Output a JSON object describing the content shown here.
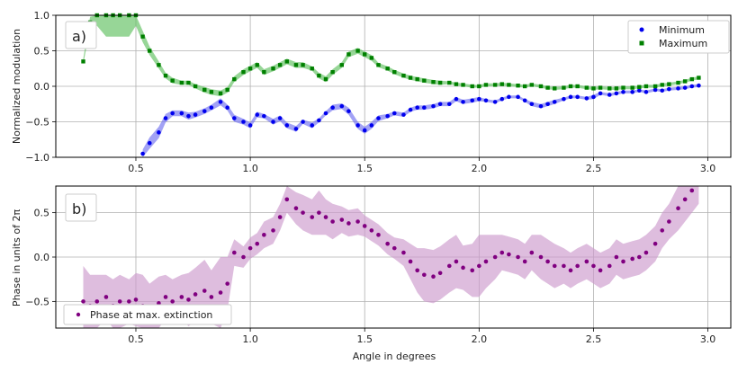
{
  "chart_data": [
    {
      "type": "scatter",
      "panel_label": "a)",
      "xlabel": "",
      "ylabel": "Normalized modulation",
      "xlim": [
        0.15,
        3.1
      ],
      "ylim": [
        -1.0,
        1.0
      ],
      "xticks": [
        "0.5",
        "1.0",
        "1.5",
        "2.0",
        "2.5",
        "3.0"
      ],
      "yticks": [
        "−1.0",
        "−0.5",
        "0.0",
        "0.5",
        "1.0"
      ],
      "grid": true,
      "legend_position": "top-right",
      "series": [
        {
          "name": "Minimum",
          "color": "#0000ee",
          "band_color": "#7070f0",
          "marker": "circle",
          "x": [
            0.53,
            0.56,
            0.6,
            0.63,
            0.66,
            0.7,
            0.73,
            0.76,
            0.8,
            0.83,
            0.87,
            0.9,
            0.93,
            0.97,
            1.0,
            1.03,
            1.06,
            1.1,
            1.13,
            1.16,
            1.2,
            1.23,
            1.27,
            1.3,
            1.33,
            1.36,
            1.4,
            1.43,
            1.47,
            1.5,
            1.53,
            1.56,
            1.6,
            1.63,
            1.67,
            1.7,
            1.73,
            1.76,
            1.8,
            1.83,
            1.87,
            1.9,
            1.93,
            1.97,
            2.0,
            2.03,
            2.07,
            2.1,
            2.13,
            2.17,
            2.2,
            2.23,
            2.27,
            2.3,
            2.33,
            2.37,
            2.4,
            2.43,
            2.47,
            2.5,
            2.53,
            2.57,
            2.6,
            2.63,
            2.67,
            2.7,
            2.73,
            2.77,
            2.8,
            2.83,
            2.87,
            2.9,
            2.93,
            2.96
          ],
          "values": [
            -0.95,
            -0.8,
            -0.65,
            -0.45,
            -0.38,
            -0.38,
            -0.42,
            -0.4,
            -0.35,
            -0.3,
            -0.22,
            -0.3,
            -0.45,
            -0.5,
            -0.55,
            -0.4,
            -0.42,
            -0.5,
            -0.45,
            -0.55,
            -0.6,
            -0.5,
            -0.55,
            -0.48,
            -0.38,
            -0.3,
            -0.28,
            -0.35,
            -0.55,
            -0.62,
            -0.55,
            -0.45,
            -0.42,
            -0.38,
            -0.4,
            -0.33,
            -0.3,
            -0.3,
            -0.28,
            -0.25,
            -0.25,
            -0.18,
            -0.22,
            -0.2,
            -0.18,
            -0.2,
            -0.22,
            -0.18,
            -0.15,
            -0.15,
            -0.2,
            -0.25,
            -0.28,
            -0.25,
            -0.22,
            -0.18,
            -0.15,
            -0.15,
            -0.17,
            -0.15,
            -0.1,
            -0.12,
            -0.1,
            -0.08,
            -0.08,
            -0.06,
            -0.08,
            -0.05,
            -0.06,
            -0.04,
            -0.03,
            -0.02,
            0.0,
            0.01
          ],
          "err": [
            0.06,
            0.08,
            0.08,
            0.06,
            0.04,
            0.04,
            0.05,
            0.04,
            0.04,
            0.04,
            0.05,
            0.04,
            0.05,
            0.04,
            0.04,
            0.04,
            0.03,
            0.04,
            0.04,
            0.04,
            0.04,
            0.03,
            0.04,
            0.03,
            0.03,
            0.04,
            0.04,
            0.05,
            0.05,
            0.05,
            0.05,
            0.04,
            0.03,
            0.03,
            0.03,
            0.03,
            0.03,
            0.03,
            0.03,
            0.03,
            0.03,
            0.03,
            0.03,
            0.03,
            0.03,
            0.02,
            0.02,
            0.02,
            0.02,
            0.02,
            0.02,
            0.03,
            0.03,
            0.03,
            0.03,
            0.02,
            0.02,
            0.02,
            0.02,
            0.03,
            0.02,
            0.02,
            0.02,
            0.02,
            0.02,
            0.02,
            0.02,
            0.02,
            0.02,
            0.02,
            0.02,
            0.02,
            0.02,
            0.02
          ]
        },
        {
          "name": "Maximum",
          "color": "#008000",
          "band_color": "#60c060",
          "marker": "square",
          "x": [
            0.27,
            0.3,
            0.33,
            0.37,
            0.4,
            0.43,
            0.47,
            0.5,
            0.53,
            0.56,
            0.6,
            0.63,
            0.66,
            0.7,
            0.73,
            0.76,
            0.8,
            0.83,
            0.87,
            0.9,
            0.93,
            0.97,
            1.0,
            1.03,
            1.06,
            1.1,
            1.13,
            1.16,
            1.2,
            1.23,
            1.27,
            1.3,
            1.33,
            1.36,
            1.4,
            1.43,
            1.47,
            1.5,
            1.53,
            1.56,
            1.6,
            1.63,
            1.67,
            1.7,
            1.73,
            1.76,
            1.8,
            1.83,
            1.87,
            1.9,
            1.93,
            1.97,
            2.0,
            2.03,
            2.07,
            2.1,
            2.13,
            2.17,
            2.2,
            2.23,
            2.27,
            2.3,
            2.33,
            2.37,
            2.4,
            2.43,
            2.47,
            2.5,
            2.53,
            2.57,
            2.6,
            2.63,
            2.67,
            2.7,
            2.73,
            2.77,
            2.8,
            2.83,
            2.87,
            2.9,
            2.93,
            2.96
          ],
          "values": [
            0.35,
            0.9,
            1.0,
            1.0,
            1.0,
            1.0,
            1.0,
            1.0,
            0.7,
            0.5,
            0.3,
            0.15,
            0.08,
            0.05,
            0.05,
            0.0,
            -0.05,
            -0.08,
            -0.1,
            -0.05,
            0.1,
            0.2,
            0.25,
            0.3,
            0.2,
            0.25,
            0.3,
            0.35,
            0.3,
            0.3,
            0.25,
            0.15,
            0.1,
            0.2,
            0.3,
            0.45,
            0.5,
            0.45,
            0.4,
            0.3,
            0.25,
            0.2,
            0.15,
            0.12,
            0.1,
            0.08,
            0.06,
            0.05,
            0.05,
            0.03,
            0.02,
            0.0,
            0.0,
            0.02,
            0.02,
            0.03,
            0.02,
            0.01,
            0.0,
            0.02,
            0.0,
            -0.02,
            -0.03,
            -0.02,
            0.0,
            0.0,
            -0.02,
            -0.03,
            -0.02,
            -0.03,
            -0.03,
            -0.02,
            -0.02,
            -0.01,
            0.0,
            0.0,
            0.02,
            0.03,
            0.05,
            0.07,
            0.1,
            0.12
          ],
          "err": [
            0.04,
            0.08,
            0.15,
            0.3,
            0.3,
            0.3,
            0.3,
            0.15,
            0.08,
            0.06,
            0.05,
            0.04,
            0.04,
            0.03,
            0.03,
            0.03,
            0.04,
            0.04,
            0.04,
            0.04,
            0.04,
            0.04,
            0.04,
            0.04,
            0.04,
            0.04,
            0.04,
            0.04,
            0.04,
            0.04,
            0.03,
            0.04,
            0.04,
            0.04,
            0.04,
            0.04,
            0.04,
            0.04,
            0.04,
            0.03,
            0.03,
            0.03,
            0.03,
            0.03,
            0.03,
            0.03,
            0.03,
            0.03,
            0.02,
            0.02,
            0.02,
            0.02,
            0.02,
            0.02,
            0.02,
            0.02,
            0.02,
            0.02,
            0.02,
            0.02,
            0.02,
            0.02,
            0.02,
            0.02,
            0.02,
            0.02,
            0.02,
            0.02,
            0.02,
            0.02,
            0.02,
            0.02,
            0.02,
            0.02,
            0.02,
            0.02,
            0.02,
            0.02,
            0.02,
            0.02,
            0.02,
            0.02
          ]
        }
      ]
    },
    {
      "type": "scatter",
      "panel_label": "b)",
      "xlabel": "Angle in degrees",
      "ylabel": "Phase in units of  2π",
      "xlim": [
        0.15,
        3.1
      ],
      "ylim": [
        -0.8,
        0.8
      ],
      "xticks": [
        "0.5",
        "1.0",
        "1.5",
        "2.0",
        "2.5",
        "3.0"
      ],
      "yticks": [
        "−0.5",
        "0.0",
        "0.5"
      ],
      "grid": true,
      "legend_position": "bottom-left",
      "series": [
        {
          "name": "Phase at max. extinction",
          "color": "#800080",
          "band_color": "#cc99cc",
          "marker": "circle",
          "x": [
            0.27,
            0.3,
            0.33,
            0.37,
            0.4,
            0.43,
            0.47,
            0.5,
            0.53,
            0.56,
            0.6,
            0.63,
            0.66,
            0.7,
            0.73,
            0.76,
            0.8,
            0.83,
            0.87,
            0.9,
            0.93,
            0.97,
            1.0,
            1.03,
            1.06,
            1.1,
            1.13,
            1.16,
            1.2,
            1.23,
            1.27,
            1.3,
            1.33,
            1.36,
            1.4,
            1.43,
            1.47,
            1.5,
            1.53,
            1.56,
            1.6,
            1.63,
            1.67,
            1.7,
            1.73,
            1.76,
            1.8,
            1.83,
            1.87,
            1.9,
            1.93,
            1.97,
            2.0,
            2.03,
            2.07,
            2.1,
            2.13,
            2.17,
            2.2,
            2.23,
            2.27,
            2.3,
            2.33,
            2.37,
            2.4,
            2.43,
            2.47,
            2.5,
            2.53,
            2.57,
            2.6,
            2.63,
            2.67,
            2.7,
            2.73,
            2.77,
            2.8,
            2.83,
            2.87,
            2.9,
            2.93,
            2.96
          ],
          "values": [
            -0.5,
            -0.55,
            -0.5,
            -0.45,
            -0.55,
            -0.5,
            -0.5,
            -0.48,
            -0.55,
            -0.6,
            -0.52,
            -0.45,
            -0.5,
            -0.45,
            -0.48,
            -0.42,
            -0.38,
            -0.45,
            -0.4,
            -0.3,
            0.05,
            0.0,
            0.1,
            0.15,
            0.25,
            0.3,
            0.45,
            0.65,
            0.55,
            0.5,
            0.45,
            0.5,
            0.45,
            0.4,
            0.42,
            0.38,
            0.4,
            0.35,
            0.3,
            0.25,
            0.15,
            0.1,
            0.05,
            -0.05,
            -0.15,
            -0.2,
            -0.22,
            -0.18,
            -0.1,
            -0.05,
            -0.12,
            -0.15,
            -0.1,
            -0.05,
            0.0,
            0.05,
            0.03,
            0.0,
            -0.05,
            0.05,
            0.0,
            -0.05,
            -0.1,
            -0.1,
            -0.15,
            -0.1,
            -0.05,
            -0.1,
            -0.15,
            -0.1,
            0.0,
            -0.05,
            -0.02,
            0.0,
            0.05,
            0.15,
            0.3,
            0.4,
            0.55,
            0.65,
            0.75,
            0.85
          ],
          "err": [
            0.4,
            0.35,
            0.3,
            0.25,
            0.3,
            0.3,
            0.25,
            0.3,
            0.35,
            0.3,
            0.3,
            0.25,
            0.25,
            0.25,
            0.3,
            0.3,
            0.35,
            0.3,
            0.4,
            0.3,
            0.15,
            0.12,
            0.12,
            0.12,
            0.15,
            0.15,
            0.15,
            0.15,
            0.18,
            0.2,
            0.2,
            0.25,
            0.2,
            0.2,
            0.15,
            0.15,
            0.15,
            0.12,
            0.12,
            0.12,
            0.12,
            0.12,
            0.15,
            0.2,
            0.25,
            0.3,
            0.3,
            0.3,
            0.3,
            0.3,
            0.25,
            0.3,
            0.35,
            0.3,
            0.25,
            0.2,
            0.2,
            0.2,
            0.2,
            0.2,
            0.25,
            0.25,
            0.25,
            0.2,
            0.2,
            0.2,
            0.2,
            0.2,
            0.2,
            0.2,
            0.2,
            0.2,
            0.2,
            0.2,
            0.2,
            0.2,
            0.2,
            0.2,
            0.25,
            0.25,
            0.25,
            0.25
          ]
        }
      ]
    }
  ]
}
